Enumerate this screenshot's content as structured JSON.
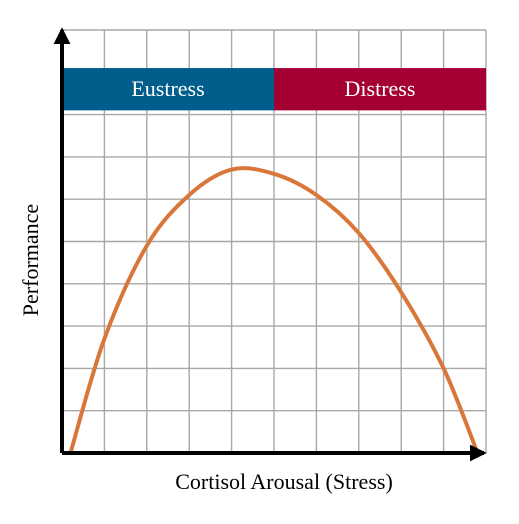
{
  "chart_data": {
    "type": "line",
    "title": "",
    "xlabel": "Cortisol Arousal (Stress)",
    "ylabel": "Performance",
    "xlim": [
      0,
      10
    ],
    "ylim": [
      0,
      10
    ],
    "grid": true,
    "x_ticks_labeled": false,
    "y_ticks_labeled": false,
    "bands": [
      {
        "label": "Eustress",
        "x_range": [
          0,
          5
        ],
        "y_range": [
          8.1,
          9.1
        ],
        "color": "#005d8c"
      },
      {
        "label": "Distress",
        "x_range": [
          5,
          10
        ],
        "y_range": [
          8.1,
          9.1
        ],
        "color": "#a50034"
      }
    ],
    "series": [
      {
        "color": "#d9773a",
        "x": [
          0.2,
          1,
          2,
          3,
          4,
          5,
          6,
          7,
          8,
          9,
          9.8
        ],
        "y": [
          0.0,
          2.7,
          4.9,
          6.1,
          6.7,
          6.6,
          6.1,
          5.2,
          3.8,
          2.0,
          0.0
        ]
      }
    ]
  }
}
